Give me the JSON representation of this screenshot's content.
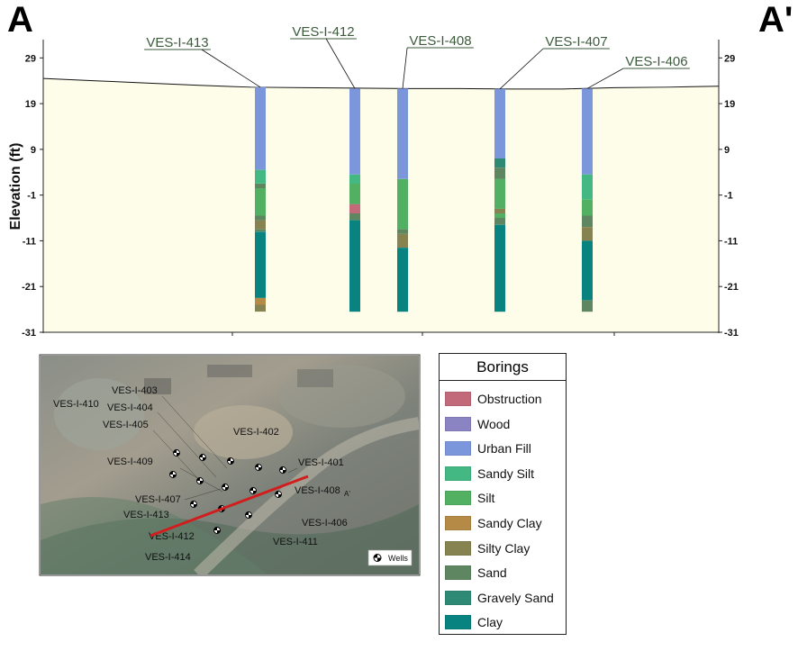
{
  "section": {
    "left_label": "A",
    "right_label": "A'",
    "ylabel": "Elevation (ft)",
    "yticks": [
      29,
      19,
      9,
      -1,
      -11,
      -21,
      -31
    ],
    "ylim": [
      -31,
      33
    ],
    "ground_elevation": [
      24.5,
      24.0,
      23.5,
      23.0,
      22.6,
      22.5,
      22.4,
      22.3,
      22.3,
      22.2,
      22.2,
      22.5,
      22.6,
      22.8
    ]
  },
  "borings": [
    {
      "name": "VES-I-413",
      "top": 22.6,
      "bottom": -26.5,
      "layers": [
        {
          "type": "Urban Fill",
          "top": 22.6,
          "bottom": 4.5
        },
        {
          "type": "Sandy Silt",
          "top": 4.5,
          "bottom": 1.5
        },
        {
          "type": "Sand",
          "top": 1.5,
          "bottom": 0.5
        },
        {
          "type": "Silt",
          "top": 0.5,
          "bottom": -5.5
        },
        {
          "type": "Sand",
          "top": -5.5,
          "bottom": -6.5
        },
        {
          "type": "Silty Clay",
          "top": -6.5,
          "bottom": -8.5
        },
        {
          "type": "Sand",
          "top": -8.5,
          "bottom": -9.0
        },
        {
          "type": "Clay",
          "top": -9.0,
          "bottom": -23.5
        },
        {
          "type": "Sandy Clay",
          "top": -23.5,
          "bottom": -25.0
        },
        {
          "type": "Silty Clay",
          "top": -25.0,
          "bottom": -26.5
        }
      ]
    },
    {
      "name": "VES-I-412",
      "top": 22.3,
      "bottom": -26.5,
      "layers": [
        {
          "type": "Urban Fill",
          "top": 22.3,
          "bottom": 3.5
        },
        {
          "type": "Sandy Silt",
          "top": 3.5,
          "bottom": 1.5
        },
        {
          "type": "Silt",
          "top": 1.5,
          "bottom": -3.0
        },
        {
          "type": "Obstruction",
          "top": -3.0,
          "bottom": -5.0
        },
        {
          "type": "Sand",
          "top": -5.0,
          "bottom": -6.5
        },
        {
          "type": "Clay",
          "top": -6.5,
          "bottom": -26.5
        }
      ]
    },
    {
      "name": "VES-I-408",
      "top": 22.3,
      "bottom": -26.5,
      "layers": [
        {
          "type": "Urban Fill",
          "top": 22.3,
          "bottom": 2.5
        },
        {
          "type": "Silt",
          "top": 2.5,
          "bottom": -8.5
        },
        {
          "type": "Sand",
          "top": -8.5,
          "bottom": -9.5
        },
        {
          "type": "Silty Clay",
          "top": -9.5,
          "bottom": -12.5
        },
        {
          "type": "Clay",
          "top": -12.5,
          "bottom": -26.5
        }
      ]
    },
    {
      "name": "VES-I-407",
      "top": 22.2,
      "bottom": -26.5,
      "layers": [
        {
          "type": "Urban Fill",
          "top": 22.2,
          "bottom": 7.0
        },
        {
          "type": "Gravely Sand",
          "top": 7.0,
          "bottom": 5.0
        },
        {
          "type": "Sand",
          "top": 5.0,
          "bottom": 2.5
        },
        {
          "type": "Silt",
          "top": 2.5,
          "bottom": -4.0
        },
        {
          "type": "Silty Clay",
          "top": -4.0,
          "bottom": -5.0
        },
        {
          "type": "Silt",
          "top": -5.0,
          "bottom": -6.0
        },
        {
          "type": "Sand",
          "top": -6.0,
          "bottom": -7.5
        },
        {
          "type": "Clay",
          "top": -7.5,
          "bottom": -26.5
        }
      ]
    },
    {
      "name": "VES-I-406",
      "top": 22.3,
      "bottom": -26.5,
      "layers": [
        {
          "type": "Urban Fill",
          "top": 22.3,
          "bottom": 3.5
        },
        {
          "type": "Sandy Silt",
          "top": 3.5,
          "bottom": -2.0
        },
        {
          "type": "Silt",
          "top": -2.0,
          "bottom": -5.5
        },
        {
          "type": "Sand",
          "top": -5.5,
          "bottom": -8.0
        },
        {
          "type": "Silty Clay",
          "top": -8.0,
          "bottom": -11.0
        },
        {
          "type": "Clay",
          "top": -11.0,
          "bottom": -24.0
        },
        {
          "type": "Sand",
          "top": -24.0,
          "bottom": -26.5
        }
      ]
    }
  ],
  "map": {
    "labels": [
      "VES-I-403",
      "VES-I-410",
      "VES-I-404",
      "VES-I-405",
      "VES-I-402",
      "VES-I-409",
      "VES-I-401",
      "VES-I-408",
      "VES-I-407",
      "VES-I-413",
      "VES-I-406",
      "VES-I-412",
      "VES-I-411",
      "VES-I-414"
    ],
    "section_end_label": "A'",
    "wells_label": "Wells"
  },
  "legend": {
    "title": "Borings",
    "items": [
      {
        "label": "Obstruction",
        "color": "#c26a7a"
      },
      {
        "label": "Wood",
        "color": "#8a84c2"
      },
      {
        "label": "Urban Fill",
        "color": "#7c96dc"
      },
      {
        "label": "Sandy Silt",
        "color": "#43b883"
      },
      {
        "label": "Silt",
        "color": "#52b063"
      },
      {
        "label": "Sandy Clay",
        "color": "#b48a46"
      },
      {
        "label": "Silty Clay",
        "color": "#868350"
      },
      {
        "label": "Sand",
        "color": "#5e8761"
      },
      {
        "label": "Gravely Sand",
        "color": "#2f8a75"
      },
      {
        "label": "Clay",
        "color": "#08837f"
      }
    ]
  }
}
